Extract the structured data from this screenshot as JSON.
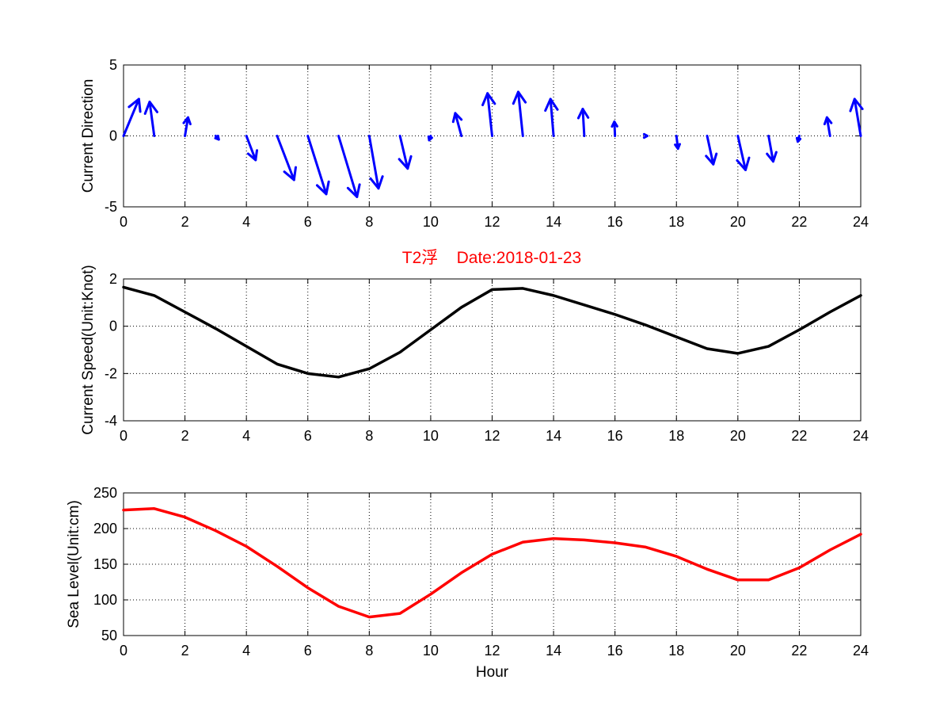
{
  "figure_title": "T2浮    Date:2018-01-23",
  "colors": {
    "title": "#ff0000",
    "quiver": "#0000ff",
    "speed_line": "#000000",
    "sea_level_line": "#ff0000"
  },
  "chart_data": [
    {
      "type": "quiver",
      "ylabel": "Current Direction",
      "xlabel": "",
      "xlim": [
        0,
        24
      ],
      "ylim": [
        -5,
        5
      ],
      "xticks": [
        0,
        2,
        4,
        6,
        8,
        10,
        12,
        14,
        16,
        18,
        20,
        22,
        24
      ],
      "yticks": [
        -5,
        0,
        5
      ],
      "grid": true,
      "x": [
        0,
        1,
        2,
        3,
        4,
        5,
        6,
        7,
        8,
        9,
        10,
        11,
        12,
        13,
        14,
        15,
        16,
        17,
        18,
        19,
        20,
        21,
        22,
        23,
        24
      ],
      "u": [
        0.5,
        -0.15,
        0.1,
        0.1,
        0.3,
        0.55,
        0.6,
        0.6,
        0.3,
        0.25,
        -0.05,
        -0.2,
        -0.15,
        -0.15,
        -0.1,
        -0.05,
        -0.02,
        0.05,
        0.05,
        0.2,
        0.25,
        0.15,
        -0.05,
        -0.1,
        -0.2
      ],
      "v": [
        2.6,
        2.4,
        1.3,
        -0.25,
        -1.7,
        -3.1,
        -4.1,
        -4.3,
        -3.7,
        -2.3,
        -0.3,
        1.6,
        3.0,
        3.1,
        2.6,
        1.9,
        1.0,
        0.0,
        -0.9,
        -2.0,
        -2.4,
        -1.8,
        -0.4,
        1.3,
        2.6
      ]
    },
    {
      "type": "line",
      "ylabel": "Current Speed(Unit:Knot)",
      "xlabel": "",
      "xlim": [
        0,
        24
      ],
      "ylim": [
        -4,
        2
      ],
      "xticks": [
        0,
        2,
        4,
        6,
        8,
        10,
        12,
        14,
        16,
        18,
        20,
        22,
        24
      ],
      "yticks": [
        -4,
        -2,
        0,
        2
      ],
      "grid": true,
      "x": [
        0,
        1,
        2,
        3,
        4,
        5,
        6,
        7,
        8,
        9,
        10,
        11,
        12,
        13,
        14,
        15,
        16,
        17,
        18,
        19,
        20,
        21,
        22,
        23,
        24
      ],
      "y": [
        1.65,
        1.3,
        0.6,
        -0.1,
        -0.85,
        -1.6,
        -2.0,
        -2.15,
        -1.8,
        -1.1,
        -0.15,
        0.8,
        1.55,
        1.6,
        1.3,
        0.9,
        0.5,
        0.05,
        -0.45,
        -0.95,
        -1.15,
        -0.85,
        -0.15,
        0.6,
        1.3
      ]
    },
    {
      "type": "line",
      "ylabel": "Sea Level(Unit:cm)",
      "xlabel": "Hour",
      "xlim": [
        0,
        24
      ],
      "ylim": [
        50,
        250
      ],
      "xticks": [
        0,
        2,
        4,
        6,
        8,
        10,
        12,
        14,
        16,
        18,
        20,
        22,
        24
      ],
      "yticks": [
        50,
        100,
        150,
        200,
        250
      ],
      "grid": true,
      "x": [
        0,
        1,
        2,
        3,
        4,
        5,
        6,
        7,
        8,
        9,
        10,
        11,
        12,
        13,
        14,
        15,
        16,
        17,
        18,
        19,
        20,
        21,
        22,
        23,
        24
      ],
      "y": [
        226,
        228,
        216,
        197,
        175,
        147,
        117,
        91,
        76,
        81,
        108,
        138,
        164,
        181,
        186,
        184,
        180,
        174,
        161,
        143,
        128,
        128,
        145,
        170,
        192
      ]
    }
  ]
}
